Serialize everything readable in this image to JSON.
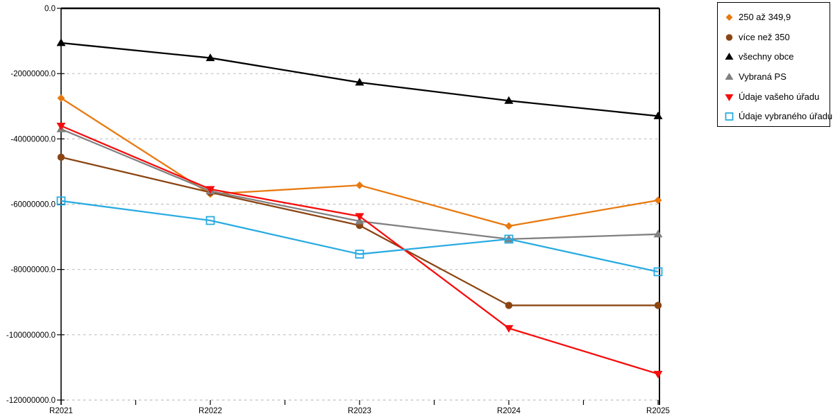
{
  "chart_data": {
    "type": "line",
    "title": "",
    "xlabel": "",
    "ylabel": "",
    "categories": [
      "R2021",
      "R2022",
      "R2023",
      "R2024",
      "R2025"
    ],
    "series": [
      {
        "name": "250 až 349,9",
        "color": "#E8790F",
        "marker": "diamond",
        "values": [
          -27500000,
          -56900000,
          -54200000,
          -66700000,
          -58800000
        ]
      },
      {
        "name": "více než 350",
        "color": "#8B4513",
        "marker": "circle",
        "values": [
          -45600000,
          -56400000,
          -66500000,
          -91000000,
          -91000000
        ]
      },
      {
        "name": "všechny obce",
        "color": "#000000",
        "marker": "triangle-up",
        "values": [
          -10600000,
          -15200000,
          -22700000,
          -28300000,
          -33000000
        ]
      },
      {
        "name": "Vybraná PS",
        "color": "#808080",
        "marker": "triangle-up",
        "values": [
          -37000000,
          -56000000,
          -65200000,
          -70700000,
          -69200000
        ]
      },
      {
        "name": "Údaje vašeho úřadu",
        "color": "#F50D0D",
        "marker": "triangle-down",
        "values": [
          -36000000,
          -55400000,
          -63700000,
          -98000000,
          -112000000
        ]
      },
      {
        "name": "Údaje vybraného úřadu",
        "color": "#29ABE2",
        "marker": "square-open",
        "values": [
          -59000000,
          -65000000,
          -75300000,
          -70700000,
          -80700000
        ]
      }
    ],
    "ylim": [
      -120000000,
      0
    ],
    "y_ticks": [
      0,
      -20000000,
      -40000000,
      -60000000,
      -80000000,
      -100000000,
      -120000000
    ],
    "y_tick_format": "one-decimal",
    "grid": "horizontal-dashed",
    "legend_position": "top-right"
  },
  "colors": {
    "background": "#ffffff",
    "axis": "#000000",
    "gridline": "#bdbdbd",
    "legend_border": "#000000"
  }
}
